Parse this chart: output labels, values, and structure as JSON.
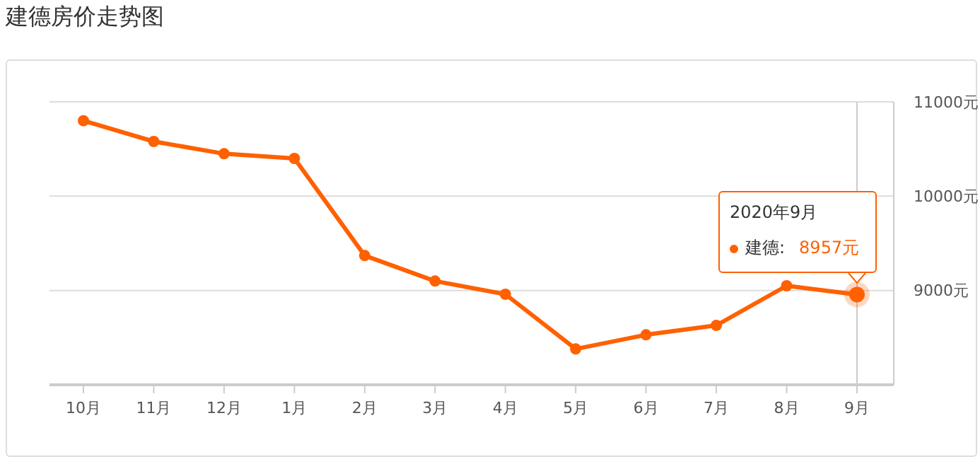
{
  "chart_data": {
    "type": "line",
    "title": "建德房价走势图",
    "categories": [
      "10月",
      "11月",
      "12月",
      "1月",
      "2月",
      "3月",
      "4月",
      "5月",
      "6月",
      "7月",
      "8月",
      "9月"
    ],
    "series": [
      {
        "name": "建德:",
        "color": "#ff6000",
        "values": [
          10800,
          10580,
          10450,
          10400,
          9370,
          9100,
          8960,
          8380,
          8530,
          8630,
          9050,
          8957
        ],
        "value_labels": [
          null,
          null,
          null,
          null,
          null,
          null,
          null,
          null,
          null,
          null,
          null,
          "8957元"
        ]
      }
    ],
    "annotations": [
      "2020年9月"
    ],
    "ref_lines": [
      {
        "axis": "x",
        "value": "9月",
        "color": "#cccccc"
      }
    ],
    "ylim": [
      8000,
      11000
    ],
    "yticks": [
      {
        "value": 9000,
        "label": "9000元"
      },
      {
        "value": 10000,
        "label": "10000元"
      },
      {
        "value": 11000,
        "label": "11000元"
      }
    ],
    "grid": "y",
    "marker": "circle",
    "line_style": "solid",
    "legend": "right"
  }
}
